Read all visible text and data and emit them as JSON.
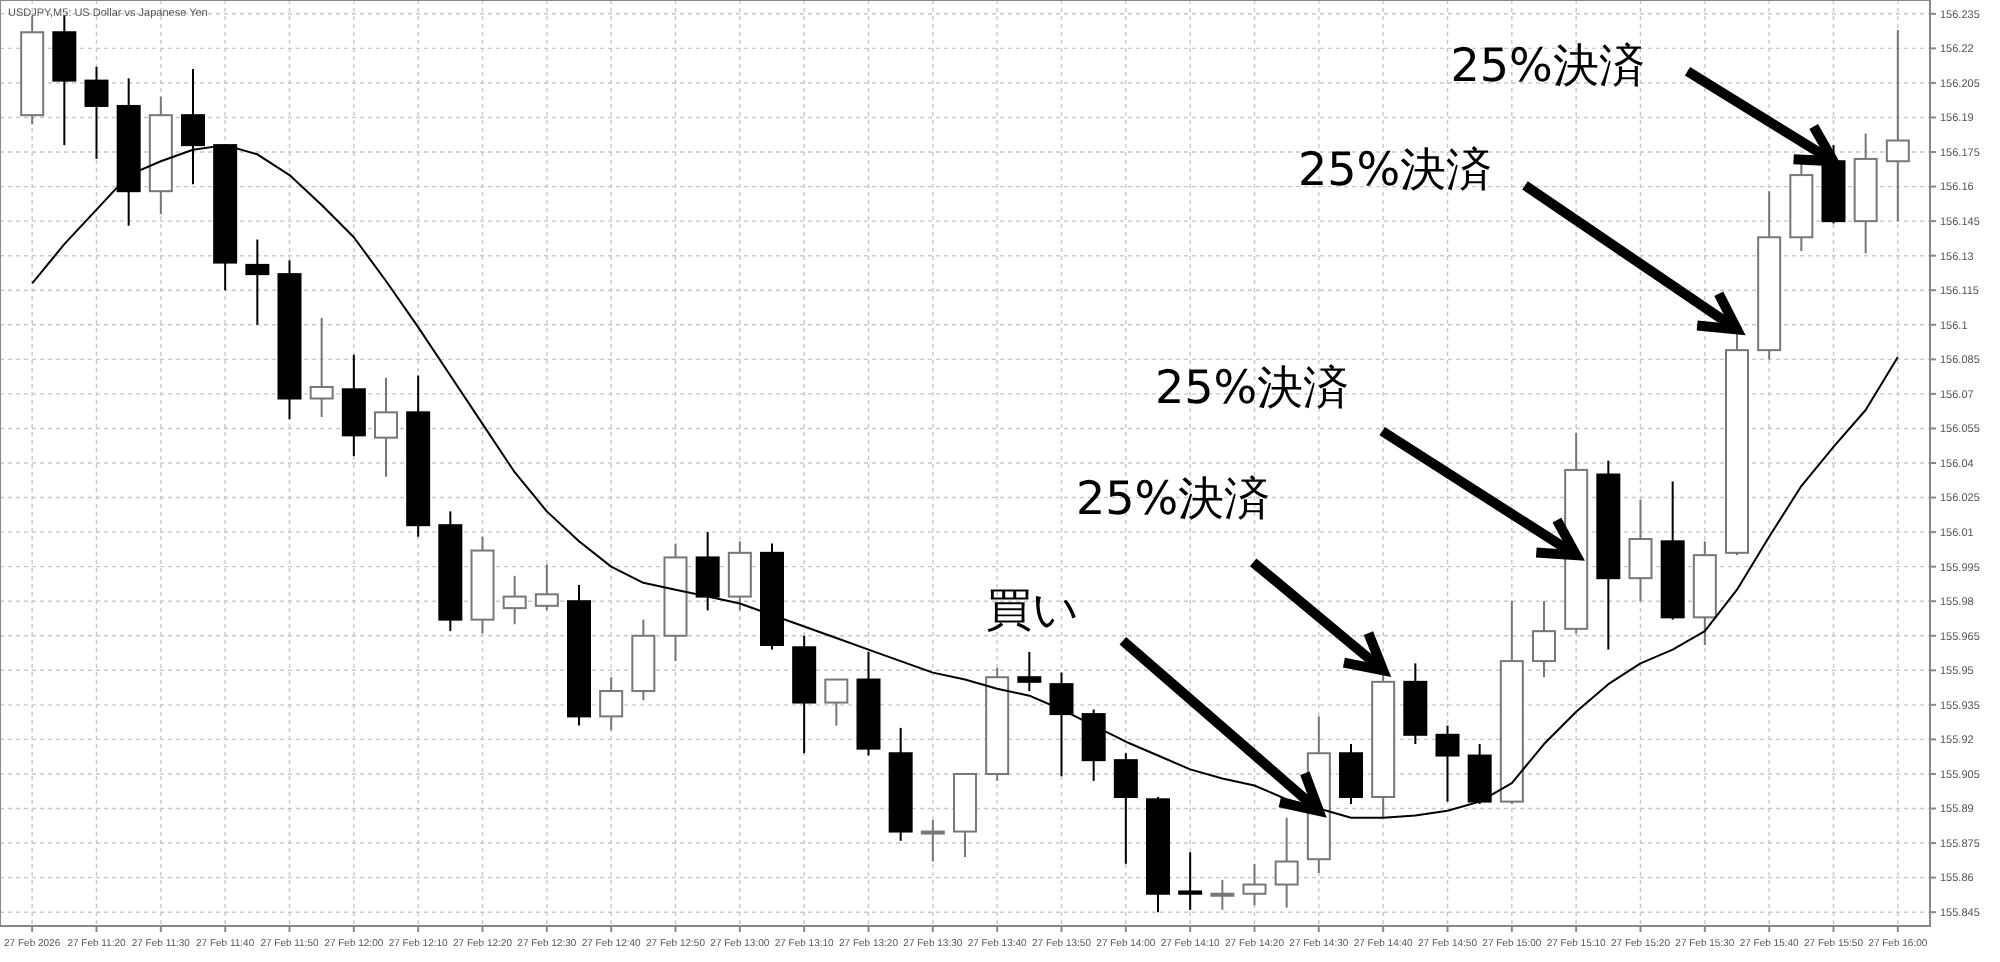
{
  "chart_data": {
    "type": "candlestick",
    "title": "USDJPY,M5: US Dollar vs Japanese Yen",
    "x": [
      "2026-02-27T11:10",
      "2026-02-27T11:15",
      "2026-02-27T11:20",
      "2026-02-27T11:25",
      "2026-02-27T11:30",
      "2026-02-27T11:35",
      "2026-02-27T11:40",
      "2026-02-27T11:45",
      "2026-02-27T11:50",
      "2026-02-27T11:55",
      "2026-02-27T12:00",
      "2026-02-27T12:05",
      "2026-02-27T12:10",
      "2026-02-27T12:15",
      "2026-02-27T12:20",
      "2026-02-27T12:25",
      "2026-02-27T12:30",
      "2026-02-27T12:35",
      "2026-02-27T12:40",
      "2026-02-27T12:45",
      "2026-02-27T12:50",
      "2026-02-27T12:55",
      "2026-02-27T13:00",
      "2026-02-27T13:05",
      "2026-02-27T13:10",
      "2026-02-27T13:15",
      "2026-02-27T13:20",
      "2026-02-27T13:25",
      "2026-02-27T13:30",
      "2026-02-27T13:35",
      "2026-02-27T13:40",
      "2026-02-27T13:45",
      "2026-02-27T13:50",
      "2026-02-27T13:55",
      "2026-02-27T14:00",
      "2026-02-27T14:05",
      "2026-02-27T14:10",
      "2026-02-27T14:15",
      "2026-02-27T14:20",
      "2026-02-27T14:25",
      "2026-02-27T14:30",
      "2026-02-27T14:35",
      "2026-02-27T14:40",
      "2026-02-27T14:45",
      "2026-02-27T14:50",
      "2026-02-27T14:55",
      "2026-02-27T15:00",
      "2026-02-27T15:05",
      "2026-02-27T15:10",
      "2026-02-27T15:15",
      "2026-02-27T15:20",
      "2026-02-27T15:25",
      "2026-02-27T15:30",
      "2026-02-27T15:35",
      "2026-02-27T15:40",
      "2026-02-27T15:45",
      "2026-02-27T15:50",
      "2026-02-27T15:55",
      "2026-02-27T16:00"
    ],
    "ohlc": [
      [
        156.191,
        156.234,
        156.187,
        156.227
      ],
      [
        156.227,
        156.234,
        156.178,
        156.206
      ],
      [
        156.206,
        156.212,
        156.172,
        156.195
      ],
      [
        156.195,
        156.207,
        156.143,
        156.158
      ],
      [
        156.158,
        156.199,
        156.148,
        156.191
      ],
      [
        156.191,
        156.211,
        156.161,
        156.178
      ],
      [
        156.178,
        156.178,
        156.115,
        156.127
      ],
      [
        156.126,
        156.137,
        156.1,
        156.122
      ],
      [
        156.122,
        156.128,
        156.059,
        156.068
      ],
      [
        156.068,
        156.103,
        156.06,
        156.073
      ],
      [
        156.072,
        156.087,
        156.043,
        156.052
      ],
      [
        156.051,
        156.077,
        156.034,
        156.062
      ],
      [
        156.062,
        156.078,
        156.008,
        156.013
      ],
      [
        156.013,
        156.019,
        155.967,
        155.972
      ],
      [
        155.972,
        156.008,
        155.966,
        156.002
      ],
      [
        155.977,
        155.991,
        155.97,
        155.982
      ],
      [
        155.978,
        155.996,
        155.976,
        155.983
      ],
      [
        155.98,
        155.987,
        155.926,
        155.93
      ],
      [
        155.93,
        155.947,
        155.924,
        155.941
      ],
      [
        155.941,
        155.972,
        155.937,
        155.965
      ],
      [
        155.965,
        156.005,
        155.954,
        155.999
      ],
      [
        155.999,
        156.01,
        155.976,
        155.982
      ],
      [
        155.982,
        156.006,
        155.976,
        156.001
      ],
      [
        156.001,
        156.005,
        155.959,
        155.961
      ],
      [
        155.96,
        155.965,
        155.914,
        155.936
      ],
      [
        155.936,
        155.946,
        155.926,
        155.946
      ],
      [
        155.946,
        155.958,
        155.913,
        155.916
      ],
      [
        155.914,
        155.925,
        155.876,
        155.88
      ],
      [
        155.88,
        155.885,
        155.867,
        155.88
      ],
      [
        155.88,
        155.905,
        155.869,
        155.905
      ],
      [
        155.905,
        155.951,
        155.902,
        155.947
      ],
      [
        155.947,
        155.958,
        155.941,
        155.945
      ],
      [
        155.944,
        155.949,
        155.904,
        155.931
      ],
      [
        155.931,
        155.933,
        155.902,
        155.911
      ],
      [
        155.911,
        155.914,
        155.866,
        155.895
      ],
      [
        155.894,
        155.895,
        155.845,
        155.853
      ],
      [
        155.854,
        155.871,
        155.846,
        155.853
      ],
      [
        155.853,
        155.859,
        155.846,
        155.853
      ],
      [
        155.853,
        155.866,
        155.848,
        155.857
      ],
      [
        155.857,
        155.886,
        155.847,
        155.867
      ],
      [
        155.868,
        155.93,
        155.862,
        155.914
      ],
      [
        155.914,
        155.918,
        155.892,
        155.895
      ],
      [
        155.895,
        155.949,
        155.886,
        155.945
      ],
      [
        155.945,
        155.953,
        155.918,
        155.922
      ],
      [
        155.922,
        155.926,
        155.893,
        155.913
      ],
      [
        155.913,
        155.918,
        155.892,
        155.893
      ],
      [
        155.893,
        155.98,
        155.892,
        155.954
      ],
      [
        155.954,
        155.98,
        155.947,
        155.967
      ],
      [
        155.968,
        156.053,
        155.966,
        156.037
      ],
      [
        156.035,
        156.041,
        155.959,
        155.99
      ],
      [
        155.99,
        156.024,
        155.98,
        156.007
      ],
      [
        156.006,
        156.032,
        155.972,
        155.973
      ],
      [
        155.973,
        156.006,
        155.961,
        156.0
      ],
      [
        156.001,
        156.102,
        156.0,
        156.089
      ],
      [
        156.089,
        156.158,
        156.085,
        156.138
      ],
      [
        156.138,
        156.173,
        156.132,
        156.165
      ],
      [
        156.171,
        156.178,
        156.144,
        156.145
      ],
      [
        156.145,
        156.183,
        156.131,
        156.172
      ],
      [
        156.171,
        156.228,
        156.145,
        156.18
      ]
    ],
    "series": [
      {
        "type": "line",
        "color": "#000000",
        "values": [
          156.118,
          156.135,
          156.15,
          156.165,
          156.171,
          156.176,
          156.178,
          156.174,
          156.165,
          156.152,
          156.138,
          156.119,
          156.099,
          156.078,
          156.057,
          156.036,
          156.019,
          156.006,
          155.995,
          155.988,
          155.985,
          155.982,
          155.979,
          155.974,
          155.969,
          155.964,
          155.959,
          155.954,
          155.949,
          155.946,
          155.942,
          155.939,
          155.933,
          155.926,
          155.919,
          155.913,
          155.907,
          155.903,
          155.9,
          155.894,
          155.89,
          155.886,
          155.886,
          155.887,
          155.889,
          155.893,
          155.901,
          155.918,
          155.932,
          155.944,
          155.953,
          155.959,
          155.967,
          155.985,
          156.008,
          156.03,
          156.047,
          156.063,
          156.086
        ]
      }
    ],
    "xlim": [
      "2026-02-27T11:05",
      "2026-02-27T16:05"
    ],
    "xticks": [
      {
        "value": "2026-02-27T11:10",
        "label": "27 Feb 2026"
      },
      {
        "value": "2026-02-27T11:20",
        "label": "27 Feb 11:20"
      },
      {
        "value": "2026-02-27T11:30",
        "label": "27 Feb 11:30"
      },
      {
        "value": "2026-02-27T11:40",
        "label": "27 Feb 11:40"
      },
      {
        "value": "2026-02-27T11:50",
        "label": "27 Feb 11:50"
      },
      {
        "value": "2026-02-27T12:00",
        "label": "27 Feb 12:00"
      },
      {
        "value": "2026-02-27T12:10",
        "label": "27 Feb 12:10"
      },
      {
        "value": "2026-02-27T12:20",
        "label": "27 Feb 12:20"
      },
      {
        "value": "2026-02-27T12:30",
        "label": "27 Feb 12:30"
      },
      {
        "value": "2026-02-27T12:40",
        "label": "27 Feb 12:40"
      },
      {
        "value": "2026-02-27T12:50",
        "label": "27 Feb 12:50"
      },
      {
        "value": "2026-02-27T13:00",
        "label": "27 Feb 13:00"
      },
      {
        "value": "2026-02-27T13:10",
        "label": "27 Feb 13:10"
      },
      {
        "value": "2026-02-27T13:20",
        "label": "27 Feb 13:20"
      },
      {
        "value": "2026-02-27T13:30",
        "label": "27 Feb 13:30"
      },
      {
        "value": "2026-02-27T13:40",
        "label": "27 Feb 13:40"
      },
      {
        "value": "2026-02-27T13:50",
        "label": "27 Feb 13:50"
      },
      {
        "value": "2026-02-27T14:00",
        "label": "27 Feb 14:00"
      },
      {
        "value": "2026-02-27T14:10",
        "label": "27 Feb 14:10"
      },
      {
        "value": "2026-02-27T14:20",
        "label": "27 Feb 14:20"
      },
      {
        "value": "2026-02-27T14:30",
        "label": "27 Feb 14:30"
      },
      {
        "value": "2026-02-27T14:40",
        "label": "27 Feb 14:40"
      },
      {
        "value": "2026-02-27T14:50",
        "label": "27 Feb 14:50"
      },
      {
        "value": "2026-02-27T15:00",
        "label": "27 Feb 15:00"
      },
      {
        "value": "2026-02-27T15:10",
        "label": "27 Feb 15:10"
      },
      {
        "value": "2026-02-27T15:20",
        "label": "27 Feb 15:20"
      },
      {
        "value": "2026-02-27T15:30",
        "label": "27 Feb 15:30"
      },
      {
        "value": "2026-02-27T15:40",
        "label": "27 Feb 15:40"
      },
      {
        "value": "2026-02-27T15:50",
        "label": "27 Feb 15:50"
      },
      {
        "value": "2026-02-27T16:00",
        "label": "27 Feb 16:00"
      }
    ],
    "ylim": [
      155.839,
      156.241
    ],
    "yticks": [
      155.845,
      155.86,
      155.875,
      155.89,
      155.905,
      155.92,
      155.935,
      155.95,
      155.965,
      155.98,
      155.995,
      156.01,
      156.025,
      156.04,
      156.055,
      156.07,
      156.085,
      156.1,
      156.115,
      156.13,
      156.145,
      156.16,
      156.175,
      156.19,
      156.205,
      156.22,
      156.235
    ],
    "grid": true,
    "annotations": [
      {
        "text": "買い",
        "x": "2026-02-27T14:30",
        "y": 155.889
      },
      {
        "text": "25%決済",
        "x": "2026-02-27T14:40",
        "y": 155.95
      },
      {
        "text": "25%決済",
        "x": "2026-02-27T15:10",
        "y": 156.0
      },
      {
        "text": "25%決済",
        "x": "2026-02-27T15:35",
        "y": 156.098
      },
      {
        "text": "25%決済",
        "x": "2026-02-27T15:50",
        "y": 156.171
      }
    ]
  }
}
